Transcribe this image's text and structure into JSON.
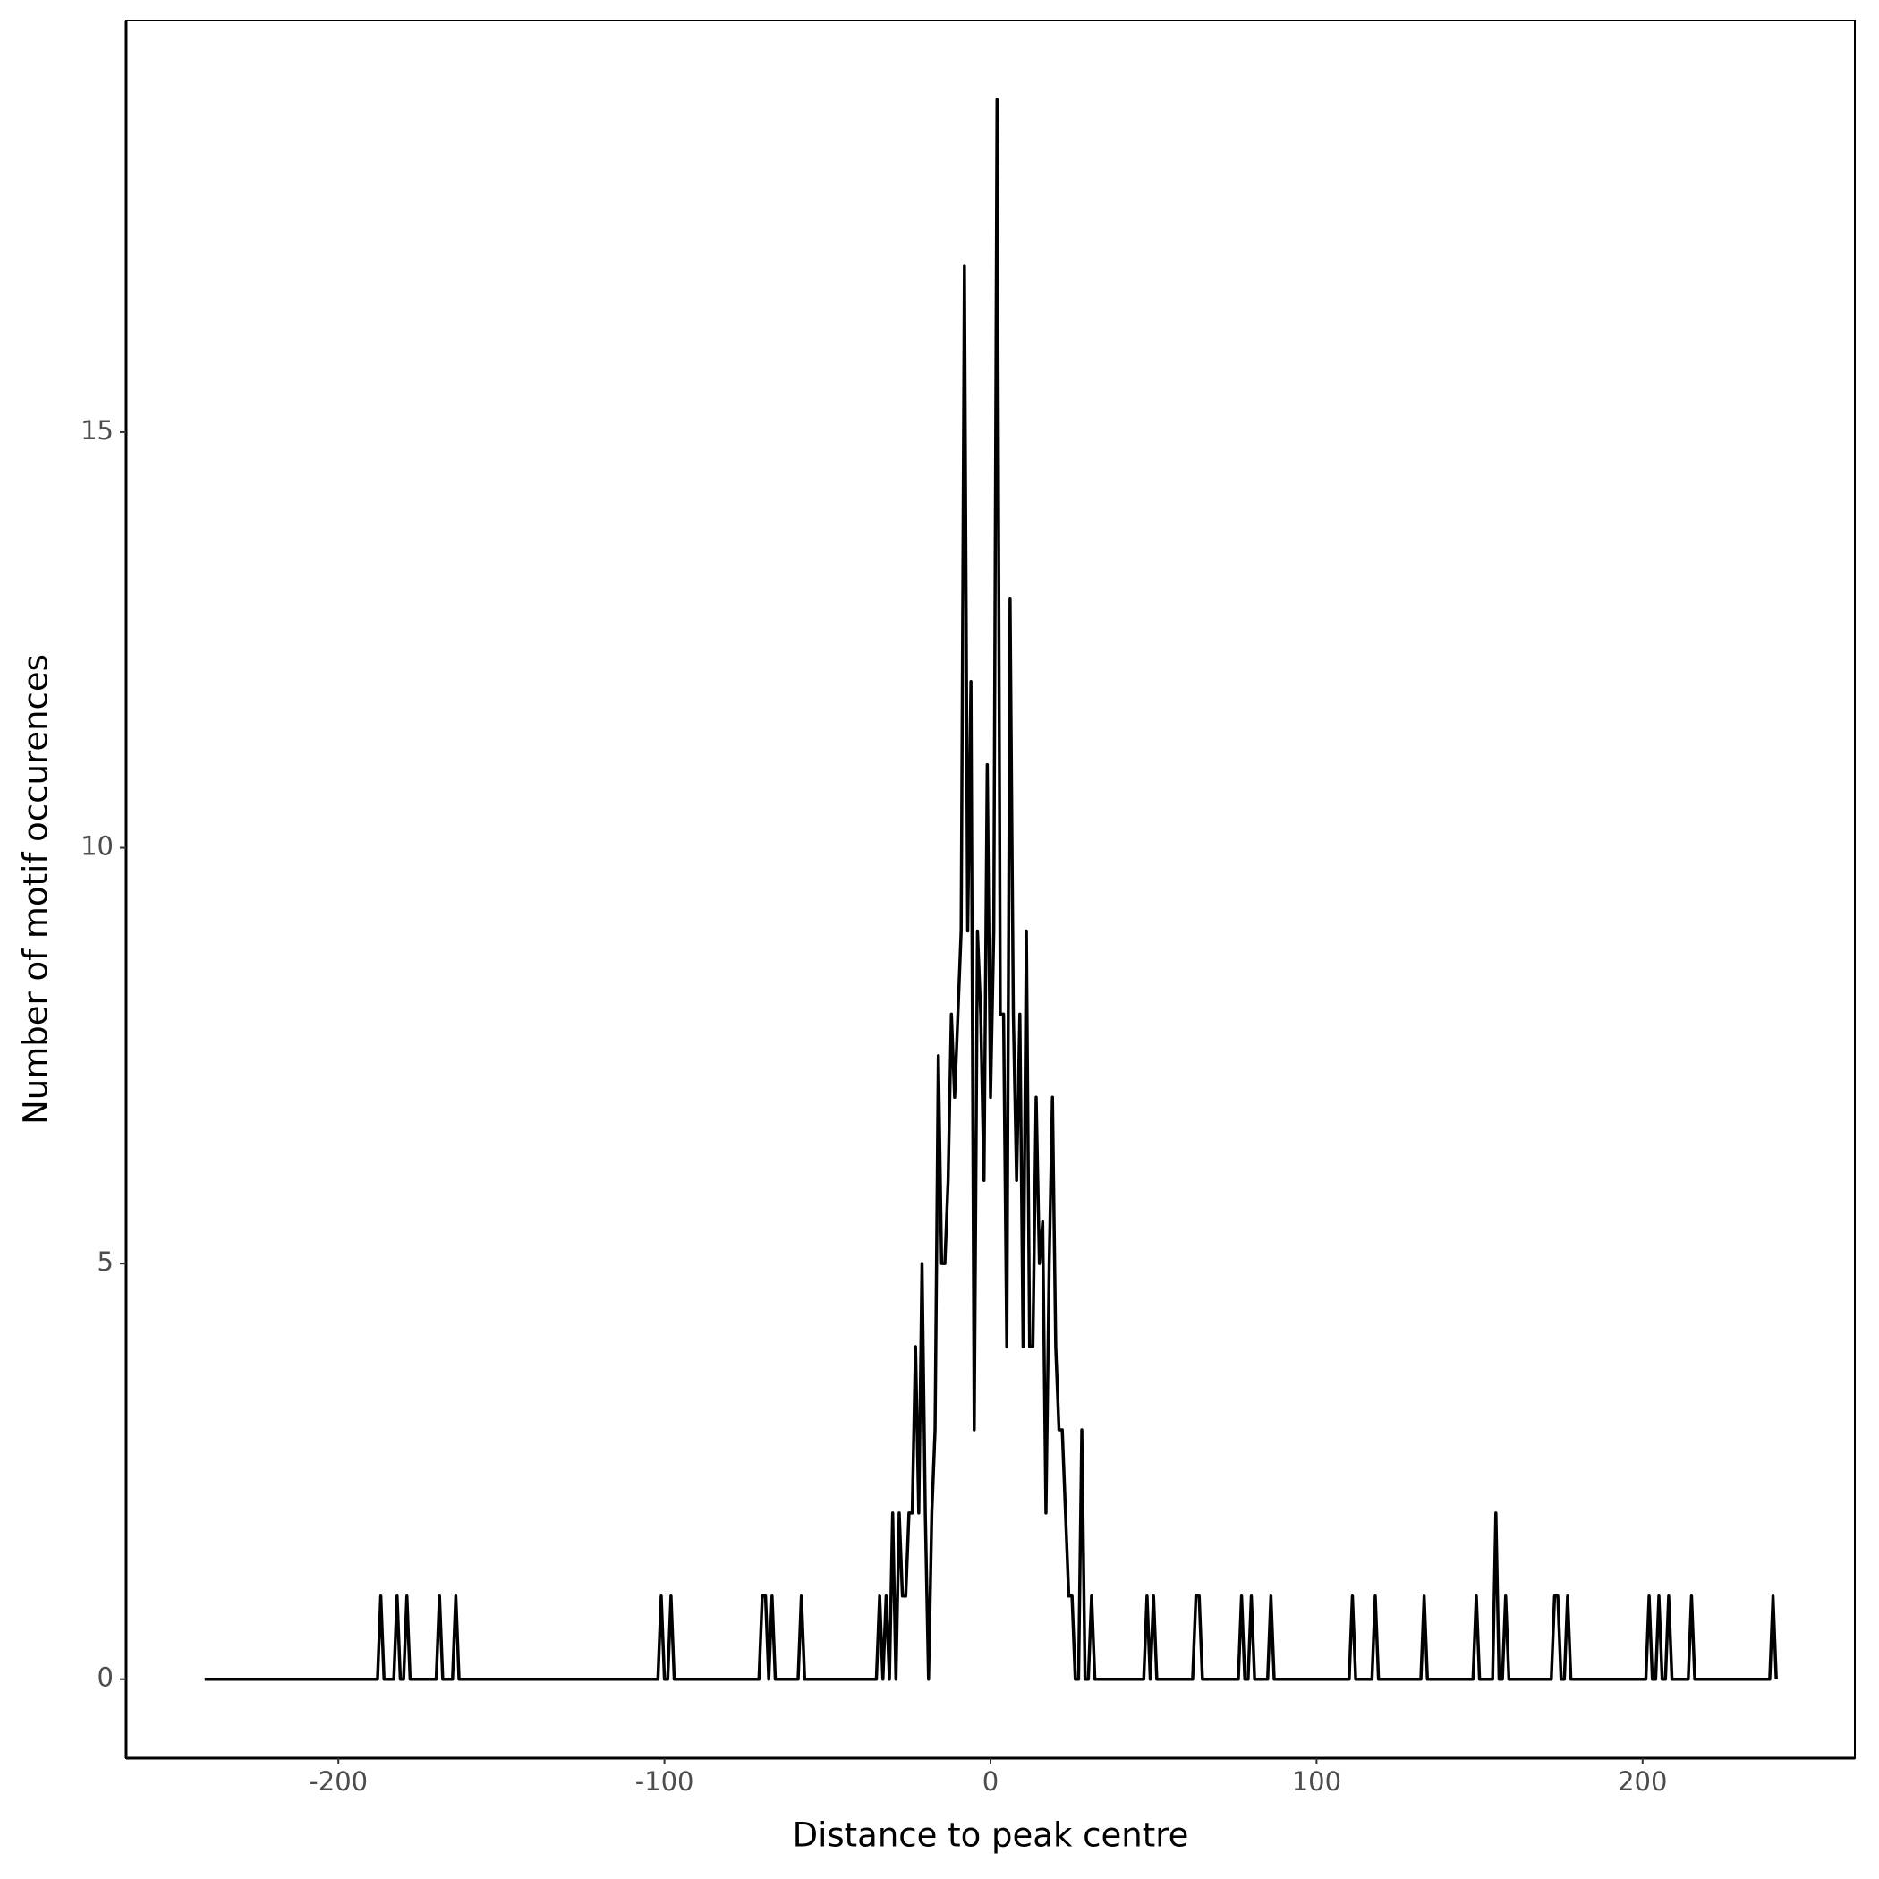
{
  "chart_data": {
    "type": "line",
    "x_label": "Distance to peak centre",
    "y_label": "Number of motif occurences",
    "x": [
      -241,
      -188,
      -187,
      -186,
      -183,
      -182,
      -181,
      -180,
      -179,
      -178,
      -170,
      -169,
      -168,
      -165,
      -164,
      -163,
      -102,
      -101,
      -100,
      -99,
      -98,
      -97,
      -71,
      -70,
      -69,
      -68,
      -67,
      -66,
      -59,
      -58,
      -57,
      -35,
      -34,
      -33,
      -32,
      -31,
      -30,
      -29,
      -28,
      -27,
      -26,
      -25,
      -24,
      -23,
      -22,
      -21,
      -20,
      -19,
      -18,
      -17,
      -16,
      -15,
      -14,
      -13,
      -12,
      -11,
      -10,
      -9,
      -8,
      -7,
      -6,
      -5,
      -4,
      -3,
      -2,
      -1,
      0,
      1,
      2,
      3,
      4,
      5,
      6,
      7,
      8,
      9,
      10,
      11,
      12,
      13,
      14,
      15,
      16,
      17,
      18,
      19,
      20,
      21,
      22,
      23,
      24,
      25,
      26,
      27,
      28,
      29,
      30,
      31,
      32,
      47,
      48,
      49,
      50,
      51,
      62,
      63,
      64,
      65,
      76,
      77,
      78,
      79,
      80,
      81,
      85,
      86,
      87,
      110,
      111,
      112,
      117,
      118,
      119,
      132,
      133,
      134,
      148,
      149,
      150,
      154,
      155,
      156,
      157,
      158,
      159,
      172,
      173,
      174,
      175,
      176,
      177,
      178,
      201,
      202,
      203,
      204,
      205,
      206,
      207,
      208,
      209,
      214,
      215,
      216,
      239,
      240,
      241
    ],
    "y": [
      0,
      0,
      1,
      0,
      0,
      1,
      0,
      0,
      1,
      0,
      0,
      1,
      0,
      0,
      1,
      0,
      0,
      1,
      0,
      0,
      1,
      0,
      0,
      1,
      1,
      0,
      1,
      0,
      0,
      1,
      0,
      0,
      1,
      0,
      1,
      0,
      2,
      0,
      2,
      1,
      1,
      2,
      2,
      4,
      2,
      5,
      2,
      0,
      2,
      3,
      7.5,
      5,
      5,
      6,
      8,
      7,
      8,
      9,
      17,
      9,
      12,
      3,
      9,
      8,
      6,
      11,
      7,
      9,
      19,
      8,
      8,
      4,
      13,
      8,
      6,
      8,
      4,
      9,
      4,
      4,
      7,
      5,
      5.5,
      2,
      5,
      7,
      4,
      3,
      3,
      2,
      1,
      1,
      0,
      0,
      3,
      0,
      0,
      1,
      0,
      0,
      1,
      0,
      1,
      0,
      0,
      1,
      1,
      0,
      0,
      1,
      0,
      0,
      1,
      0,
      0,
      1,
      0,
      0,
      1,
      0,
      0,
      1,
      0,
      0,
      1,
      0,
      0,
      1,
      0,
      0,
      2,
      0,
      0,
      1,
      0,
      0,
      1,
      1,
      0,
      0,
      1,
      0,
      0,
      1,
      0,
      0,
      1,
      0,
      0,
      1,
      0,
      0,
      1,
      0,
      0,
      1,
      0
    ],
    "color": "#000000",
    "xlim": [
      -265.1,
      265.1
    ],
    "ylim": [
      -0.95,
      19.95
    ],
    "xticks": [
      -200,
      -100,
      0,
      100,
      200
    ],
    "yticks": [
      0,
      5,
      10,
      15
    ],
    "grid": false
  }
}
